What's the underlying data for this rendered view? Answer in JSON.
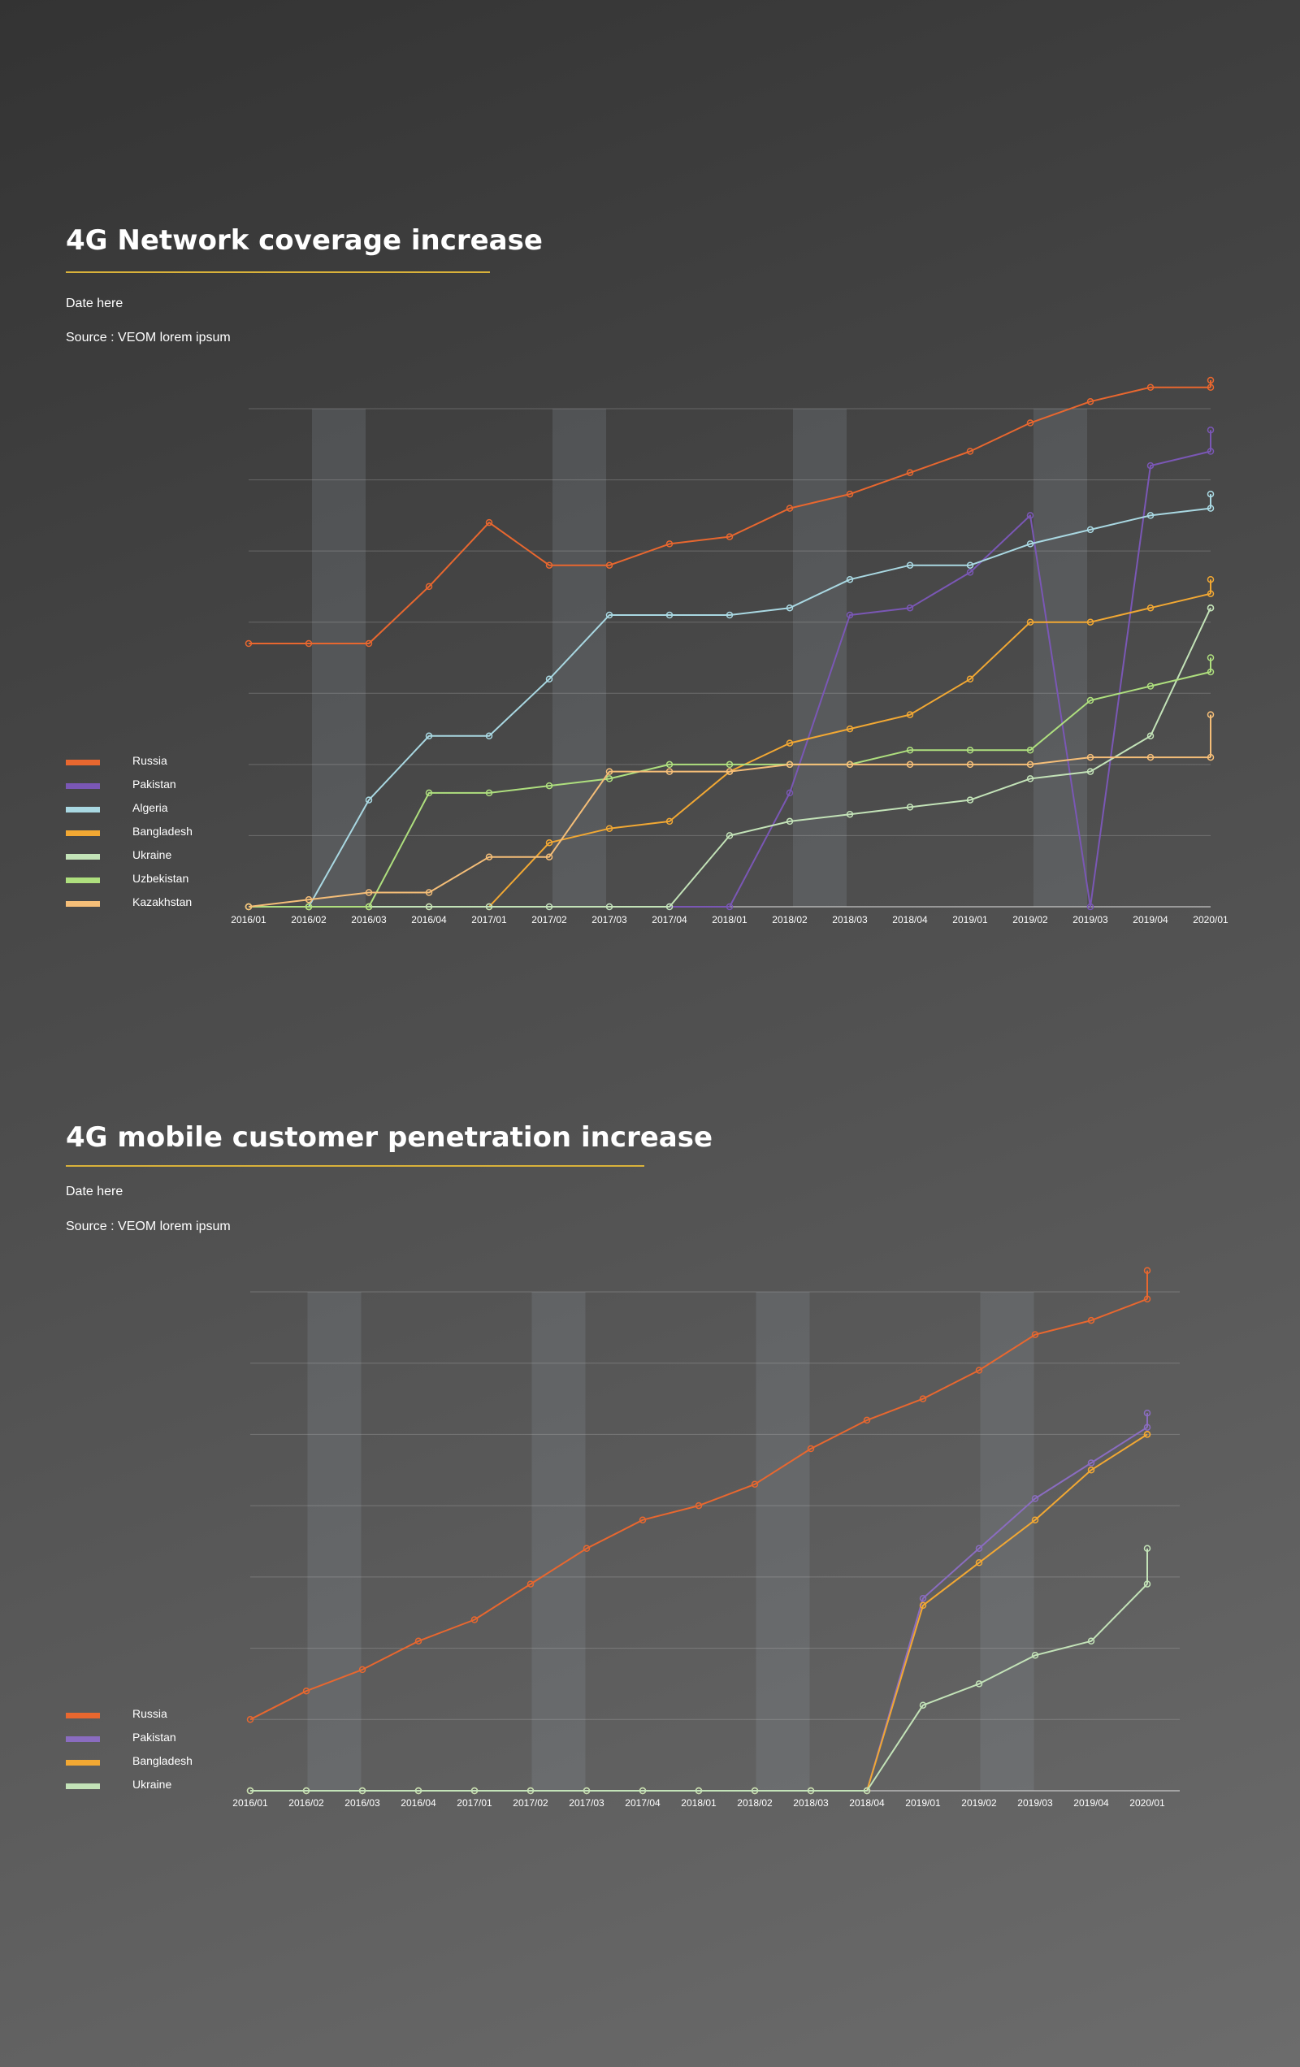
{
  "charts": [
    {
      "title": "4G Network coverage increase",
      "date": "Date here",
      "source": "Source : VEOM lorem ipsum"
    },
    {
      "title": "4G mobile customer penetration increase",
      "date": "Date here",
      "source": "Source : VEOM lorem ipsum"
    }
  ],
  "chart_data": [
    {
      "type": "line",
      "title": "4G Network coverage increase",
      "xlabel": "",
      "ylabel": "",
      "ylim": [
        0,
        7
      ],
      "grid": true,
      "legend_position": "left",
      "categories": [
        "2016/01",
        "2016/02",
        "2016/03",
        "2016/04",
        "2017/01",
        "2017/02",
        "2017/03",
        "2017/04",
        "2018/01",
        "2018/02",
        "2018/03",
        "2018/04",
        "2019/01",
        "2019/02",
        "2019/03",
        "2019/04",
        "2020/01"
      ],
      "series": [
        {
          "name": "Russia",
          "color": "#e8672f",
          "values": [
            3.7,
            3.7,
            3.7,
            4.5,
            5.4,
            4.8,
            4.8,
            5.1,
            5.2,
            5.6,
            5.8,
            6.1,
            6.4,
            6.8,
            7.1,
            7.3,
            7.3
          ],
          "end_marker": 7.4
        },
        {
          "name": "Pakistan",
          "color": "#7a57b5",
          "values": [
            0,
            0,
            0,
            0,
            0,
            0,
            0,
            0,
            0,
            1.6,
            4.1,
            4.2,
            4.7,
            5.5,
            0,
            6.2,
            6.4
          ],
          "end_marker": 6.7
        },
        {
          "name": "Algeria",
          "color": "#a9d8e2",
          "values": [
            0,
            0,
            1.5,
            2.4,
            2.4,
            3.2,
            4.1,
            4.1,
            4.1,
            4.2,
            4.6,
            4.8,
            4.8,
            5.1,
            5.3,
            5.5,
            5.6
          ],
          "end_marker": 5.8
        },
        {
          "name": "Bangladesh",
          "color": "#f2a833",
          "values": [
            0,
            0,
            0,
            0,
            0,
            0.9,
            1.1,
            1.2,
            1.9,
            2.3,
            2.5,
            2.7,
            3.2,
            4.0,
            4.0,
            4.2,
            4.4
          ],
          "end_marker": 4.6
        },
        {
          "name": "Ukraine",
          "color": "#c3e3b8",
          "values": [
            0,
            0,
            0,
            0,
            0,
            0,
            0,
            0,
            1.0,
            1.2,
            1.3,
            1.4,
            1.5,
            1.8,
            1.9,
            2.4,
            4.2
          ],
          "end_marker": 4.2
        },
        {
          "name": "Uzbekistan",
          "color": "#aedf7e",
          "values": [
            0,
            0,
            0,
            1.6,
            1.6,
            1.7,
            1.8,
            2.0,
            2.0,
            2.0,
            2.0,
            2.2,
            2.2,
            2.2,
            2.9,
            3.1,
            3.3
          ],
          "end_marker": 3.5
        },
        {
          "name": "Kazakhstan",
          "color": "#f5be78",
          "values": [
            0,
            0.1,
            0.2,
            0.2,
            0.7,
            0.7,
            1.9,
            1.9,
            1.9,
            2.0,
            2.0,
            2.0,
            2.0,
            2.0,
            2.1,
            2.1,
            2.1
          ],
          "end_marker": 2.7
        }
      ]
    },
    {
      "type": "line",
      "title": "4G mobile customer penetration increase",
      "xlabel": "",
      "ylabel": "",
      "ylim": [
        0,
        7
      ],
      "grid": true,
      "legend_position": "left",
      "categories": [
        "2016/01",
        "2016/02",
        "2016/03",
        "2016/04",
        "2017/01",
        "2017/02",
        "2017/03",
        "2017/04",
        "2018/01",
        "2018/02",
        "2018/03",
        "2018/04",
        "2019/01",
        "2019/02",
        "2019/03",
        "2019/04",
        "2020/01"
      ],
      "series": [
        {
          "name": "Russia",
          "color": "#e8672f",
          "values": [
            1.0,
            1.4,
            1.7,
            2.1,
            2.4,
            2.9,
            3.4,
            3.8,
            4.0,
            4.3,
            4.8,
            5.2,
            5.5,
            5.9,
            6.4,
            6.6,
            6.9
          ],
          "end_marker": 7.3
        },
        {
          "name": "Pakistan",
          "color": "#8a6cc0",
          "values": [
            0,
            0,
            0,
            0,
            0,
            0,
            0,
            0,
            0,
            0,
            0,
            0,
            2.7,
            3.4,
            4.1,
            4.6,
            5.1
          ],
          "end_marker": 5.3
        },
        {
          "name": "Bangladesh",
          "color": "#f2a833",
          "values": [
            0,
            0,
            0,
            0,
            0,
            0,
            0,
            0,
            0,
            0,
            0,
            0,
            2.6,
            3.2,
            3.8,
            4.5,
            5.0
          ],
          "end_marker": 5.0
        },
        {
          "name": "Ukraine",
          "color": "#c3e3b8",
          "values": [
            0,
            0,
            0,
            0,
            0,
            0,
            0,
            0,
            0,
            0,
            0,
            0,
            1.2,
            1.5,
            1.9,
            2.1,
            2.9
          ],
          "end_marker": 3.4
        }
      ]
    }
  ]
}
